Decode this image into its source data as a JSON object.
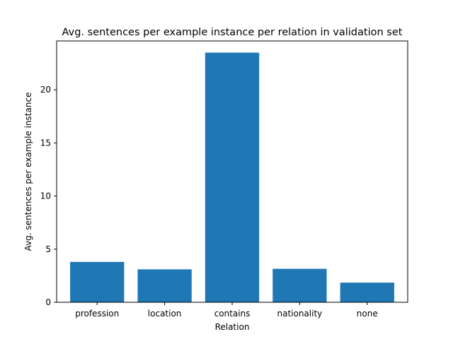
{
  "chart_data": {
    "type": "bar",
    "title": "Avg. sentences per example instance per relation in validation set",
    "xlabel": "Relation",
    "ylabel": "Avg. sentences per example instance",
    "categories": [
      "profession",
      "location",
      "contains",
      "nationality",
      "none"
    ],
    "values": [
      3.8,
      3.1,
      23.5,
      3.15,
      1.85
    ],
    "ylim": [
      0,
      24.6
    ],
    "yticks": [
      0,
      5,
      10,
      15,
      20
    ],
    "grid": false,
    "legend": "none",
    "bar_color": "#1f77b4"
  }
}
